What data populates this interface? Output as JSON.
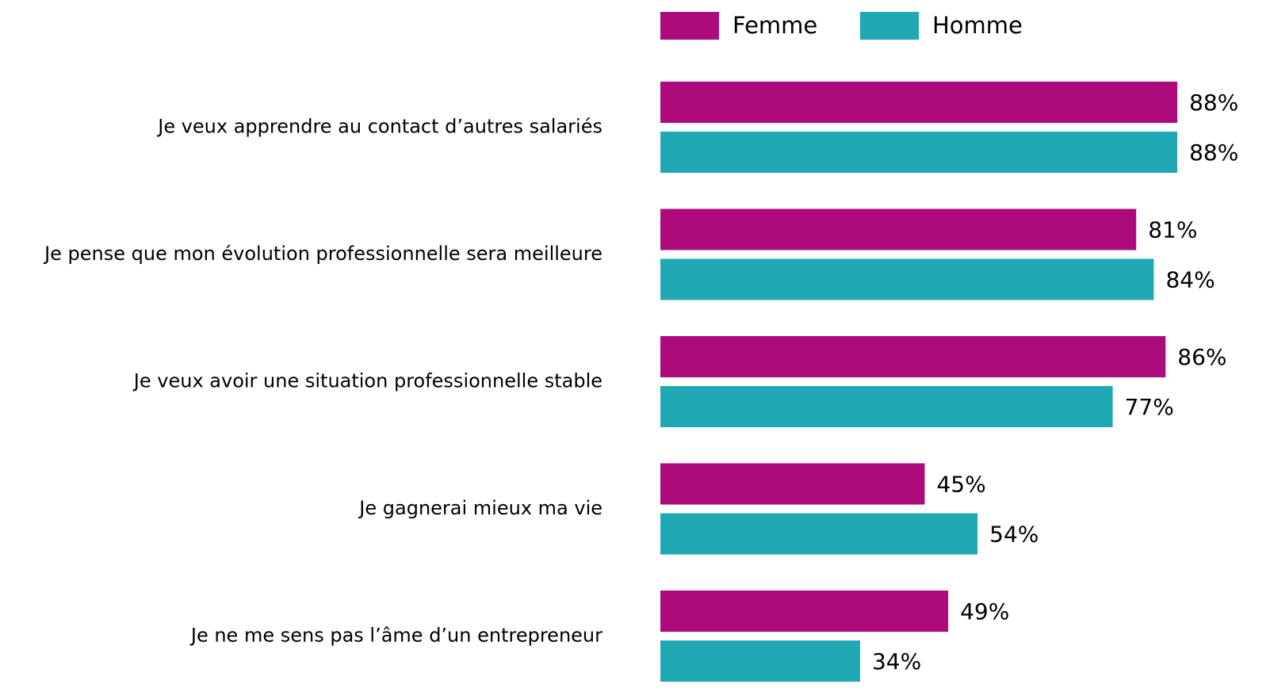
{
  "chart_data": {
    "type": "hbar",
    "categories": [
      "Je veux apprendre au contact d’autres salariés",
      "Je pense que mon évolution professionnelle sera meilleure",
      "Je veux avoir une situation professionnelle stable",
      "Je gagnerai mieux ma vie",
      "Je ne me sens pas l’âme d’un entrepreneur"
    ],
    "series": [
      {
        "name": "Femme",
        "color": "#ad0a7b",
        "values": [
          88,
          81,
          86,
          45,
          49
        ],
        "value_labels": [
          "88%",
          "81%",
          "86%",
          "45%",
          "49%"
        ]
      },
      {
        "name": "Homme",
        "color": "#20a9b4",
        "values": [
          88,
          84,
          77,
          54,
          34
        ],
        "value_labels": [
          "88%",
          "84%",
          "77%",
          "54%",
          "34%"
        ]
      }
    ],
    "xlim": [
      0,
      100
    ],
    "legend": "top"
  }
}
